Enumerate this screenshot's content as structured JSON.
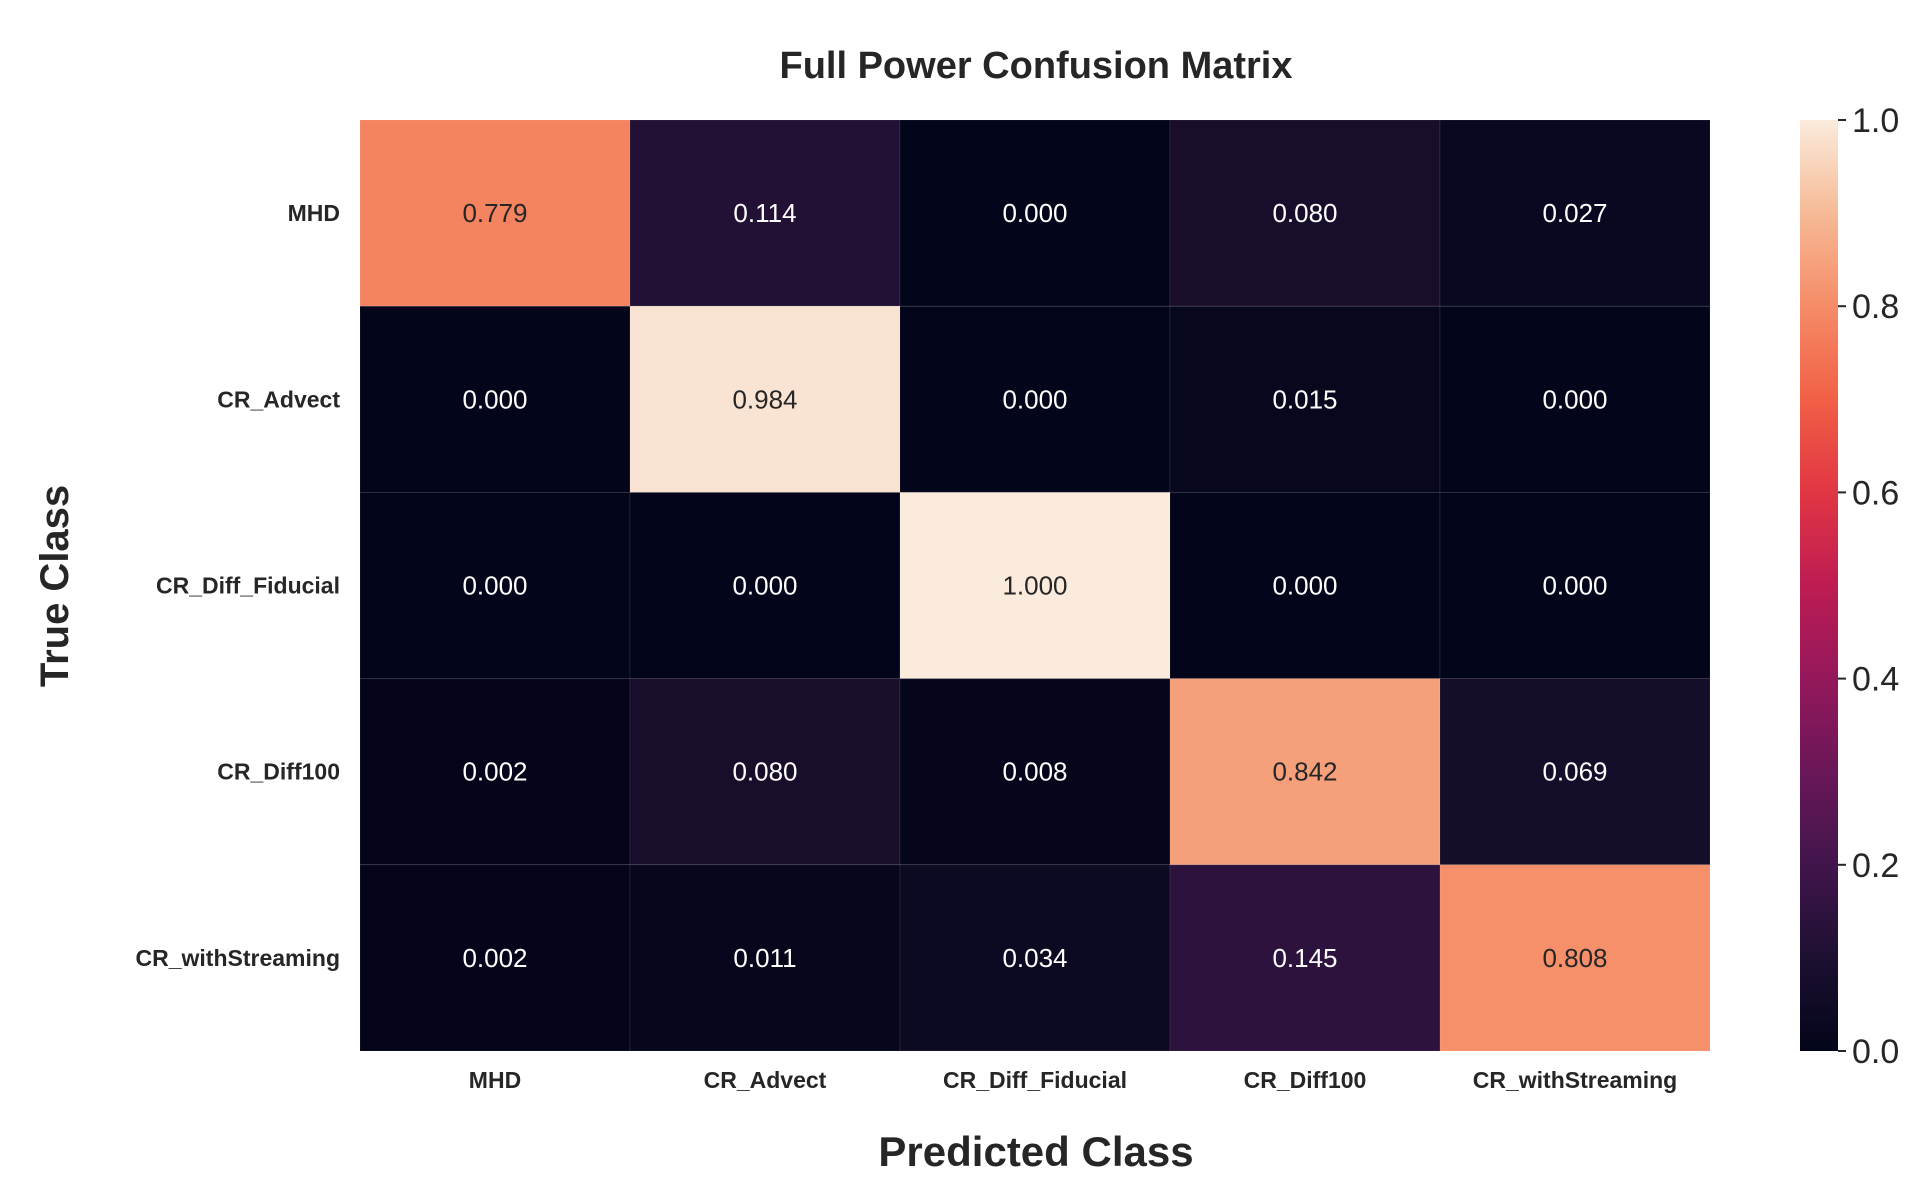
{
  "chart_data": {
    "type": "heatmap",
    "title": "Full Power Confusion Matrix",
    "xlabel": "Predicted Class",
    "ylabel": "True Class",
    "x_categories": [
      "MHD",
      "CR_Advect",
      "CR_Diff_Fiducial",
      "CR_Diff100",
      "CR_withStreaming"
    ],
    "y_categories": [
      "MHD",
      "CR_Advect",
      "CR_Diff_Fiducial",
      "CR_Diff100",
      "CR_withStreaming"
    ],
    "values": [
      [
        0.779,
        0.114,
        0.0,
        0.08,
        0.027
      ],
      [
        0.0,
        0.984,
        0.0,
        0.015,
        0.0
      ],
      [
        0.0,
        0.0,
        1.0,
        0.0,
        0.0
      ],
      [
        0.002,
        0.08,
        0.008,
        0.842,
        0.069
      ],
      [
        0.002,
        0.011,
        0.034,
        0.145,
        0.808
      ]
    ],
    "value_format": "3 decimals",
    "colormap": "rocket",
    "colorbar": {
      "range": [
        0.0,
        1.0
      ],
      "ticks": [
        "0.0",
        "0.2",
        "0.4",
        "0.6",
        "0.8",
        "1.0"
      ],
      "position": "right"
    }
  }
}
